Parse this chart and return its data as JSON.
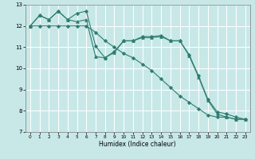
{
  "title": "",
  "xlabel": "Humidex (Indice chaleur)",
  "background_color": "#c8e8e8",
  "grid_color": "#ffffff",
  "line_color": "#2e7d6e",
  "xlim": [
    -0.5,
    23.5
  ],
  "ylim": [
    7,
    13
  ],
  "xticks": [
    0,
    1,
    2,
    3,
    4,
    5,
    6,
    7,
    8,
    9,
    10,
    11,
    12,
    13,
    14,
    15,
    16,
    17,
    18,
    19,
    20,
    21,
    22,
    23
  ],
  "yticks": [
    7,
    8,
    9,
    10,
    11,
    12,
    13
  ],
  "series": [
    {
      "x": [
        0,
        1,
        2,
        3,
        4,
        5,
        6,
        7,
        8,
        9,
        10,
        11,
        12,
        13,
        14,
        15,
        16,
        17,
        18,
        19,
        20,
        21,
        22,
        23
      ],
      "y": [
        12.0,
        12.5,
        12.3,
        12.7,
        12.3,
        12.2,
        12.3,
        10.55,
        10.5,
        10.75,
        11.3,
        11.3,
        11.45,
        11.45,
        11.5,
        11.3,
        11.3,
        10.6,
        9.6,
        8.5,
        7.85,
        7.7,
        7.6,
        7.6
      ]
    },
    {
      "x": [
        0,
        1,
        2,
        3,
        4,
        5,
        6,
        7,
        8,
        9,
        10,
        11,
        12,
        13,
        14,
        15,
        16,
        17,
        18,
        19,
        20,
        21,
        22,
        23
      ],
      "y": [
        12.0,
        12.5,
        12.3,
        12.7,
        12.3,
        12.6,
        12.7,
        11.05,
        10.5,
        10.8,
        11.3,
        11.3,
        11.5,
        11.5,
        11.55,
        11.3,
        11.3,
        10.65,
        9.65,
        8.55,
        7.95,
        7.85,
        7.7,
        7.6
      ]
    },
    {
      "x": [
        0,
        1,
        2,
        3,
        4,
        5,
        6,
        7,
        8,
        9,
        10,
        11,
        12,
        13,
        14,
        15,
        16,
        17,
        18,
        19,
        20,
        21,
        22,
        23
      ],
      "y": [
        12.0,
        12.0,
        12.0,
        12.0,
        12.0,
        12.0,
        12.0,
        11.7,
        11.3,
        11.0,
        10.7,
        10.5,
        10.2,
        9.9,
        9.5,
        9.1,
        8.7,
        8.4,
        8.1,
        7.8,
        7.7,
        7.7,
        7.6,
        7.6
      ]
    }
  ],
  "markers": [
    "^",
    "D",
    "D"
  ],
  "markersizes": [
    2.5,
    2.0,
    2.0
  ]
}
